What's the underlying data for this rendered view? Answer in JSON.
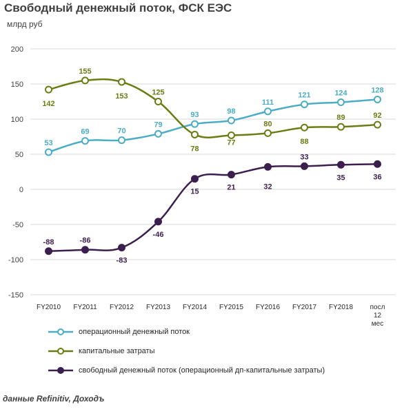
{
  "header": {
    "title": "Свободный денежный поток, ФСК ЕЭС",
    "unit": "млрд руб"
  },
  "source": "данные Refinitiv, Доходъ",
  "colors": {
    "ocf": "#4bacc6",
    "capex": "#6b7c12",
    "fcf": "#3b1f4e",
    "grid": "#d9d9d9",
    "axis_text": "#404040"
  },
  "legend": [
    {
      "label": "операционный денежный поток",
      "key": "ocf",
      "filled": false
    },
    {
      "label": "капитальные затраты",
      "key": "capex",
      "filled": false
    },
    {
      "label": "свободный денежный поток (операционный дп-капитальные затраты)",
      "key": "fcf",
      "filled": true
    }
  ],
  "chart_data": {
    "type": "line",
    "categories": [
      "FY2010",
      "FY2011",
      "FY2012",
      "FY2013",
      "FY2014",
      "FY2015",
      "FY2016",
      "FY2017",
      "FY2018",
      "посл 12 мес"
    ],
    "ylim": [
      -150,
      200
    ],
    "yticks": [
      200,
      150,
      100,
      50,
      0,
      -50,
      -100,
      -150
    ],
    "grid": "horizontal",
    "legend_position": "bottom",
    "series": [
      {
        "name": "операционный денежный поток",
        "key": "ocf",
        "values": [
          53,
          69,
          70,
          79,
          93,
          98,
          111,
          121,
          124,
          128
        ]
      },
      {
        "name": "капитальные затраты",
        "key": "capex",
        "values": [
          142,
          155,
          153,
          125,
          78,
          77,
          80,
          88,
          89,
          92
        ]
      },
      {
        "name": "свободный денежный поток (операционный дп-капитальные затраты)",
        "key": "fcf",
        "values": [
          -88,
          -86,
          -83,
          -46,
          15,
          21,
          32,
          33,
          35,
          36
        ]
      }
    ]
  }
}
